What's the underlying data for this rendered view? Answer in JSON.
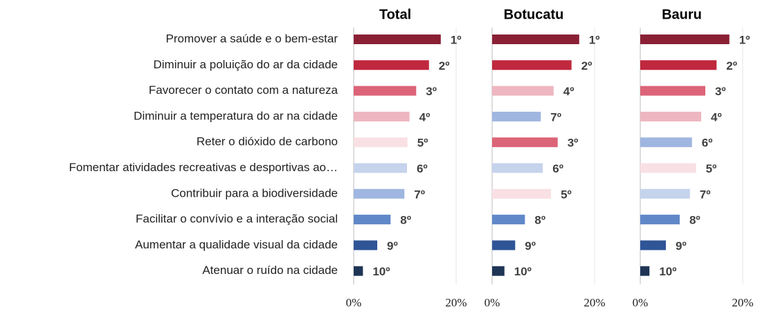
{
  "chart_data": {
    "type": "bar",
    "categories": [
      "Promover a saúde e o bem-estar",
      "Diminuir a poluição do ar da cidade",
      "Favorecer o contato com a natureza",
      "Diminuir a temperatura do ar na cidade",
      "Reter o dióxido de carbono",
      "Fomentar atividades recreativas e desportivas ao…",
      "Contribuir para a biodiversidade",
      "Facilitar o convívio e a interação social",
      "Aumentar a qualidade visual da cidade",
      "Atenuar o ruído na cidade"
    ],
    "series": [
      {
        "name": "Total",
        "values": [
          17.0,
          14.7,
          12.2,
          10.9,
          10.5,
          10.4,
          9.9,
          7.2,
          4.6,
          1.8
        ],
        "value_labels": [
          "1º",
          "2º",
          "3º",
          "4º",
          "5º",
          "6º",
          "7º",
          "8º",
          "9º",
          "10º"
        ],
        "colors": [
          "#8b2035",
          "#c0283e",
          "#dc6478",
          "#eeb6c0",
          "#f9e0e4",
          "#c5d3ec",
          "#9fb6e0",
          "#6088c8",
          "#2f5597",
          "#1f3556"
        ]
      },
      {
        "name": "Botucatu",
        "values": [
          17.0,
          15.5,
          12.0,
          9.5,
          12.8,
          9.9,
          11.5,
          6.4,
          4.5,
          2.4
        ],
        "value_labels": [
          "1º",
          "2º",
          "4º",
          "7º",
          "3º",
          "6º",
          "5º",
          "8º",
          "9º",
          "10º"
        ],
        "colors": [
          "#8b2035",
          "#c0283e",
          "#eeb6c0",
          "#9fb6e0",
          "#dc6478",
          "#c5d3ec",
          "#f9e0e4",
          "#6088c8",
          "#2f5597",
          "#1f3556"
        ]
      },
      {
        "name": "Bauru",
        "values": [
          17.4,
          14.9,
          12.7,
          11.9,
          10.1,
          10.9,
          9.7,
          7.7,
          5.0,
          1.8
        ],
        "value_labels": [
          "1º",
          "2º",
          "3º",
          "4º",
          "6º",
          "5º",
          "7º",
          "8º",
          "9º",
          "10º"
        ],
        "colors": [
          "#8b2035",
          "#c0283e",
          "#dc6478",
          "#eeb6c0",
          "#9fb6e0",
          "#f9e0e4",
          "#c5d3ec",
          "#6088c8",
          "#2f5597",
          "#1f3556"
        ]
      }
    ],
    "xlim": [
      0,
      20
    ],
    "xticks": [
      {
        "value": 0,
        "label": "0%"
      },
      {
        "value": 20,
        "label": "20%"
      }
    ]
  }
}
